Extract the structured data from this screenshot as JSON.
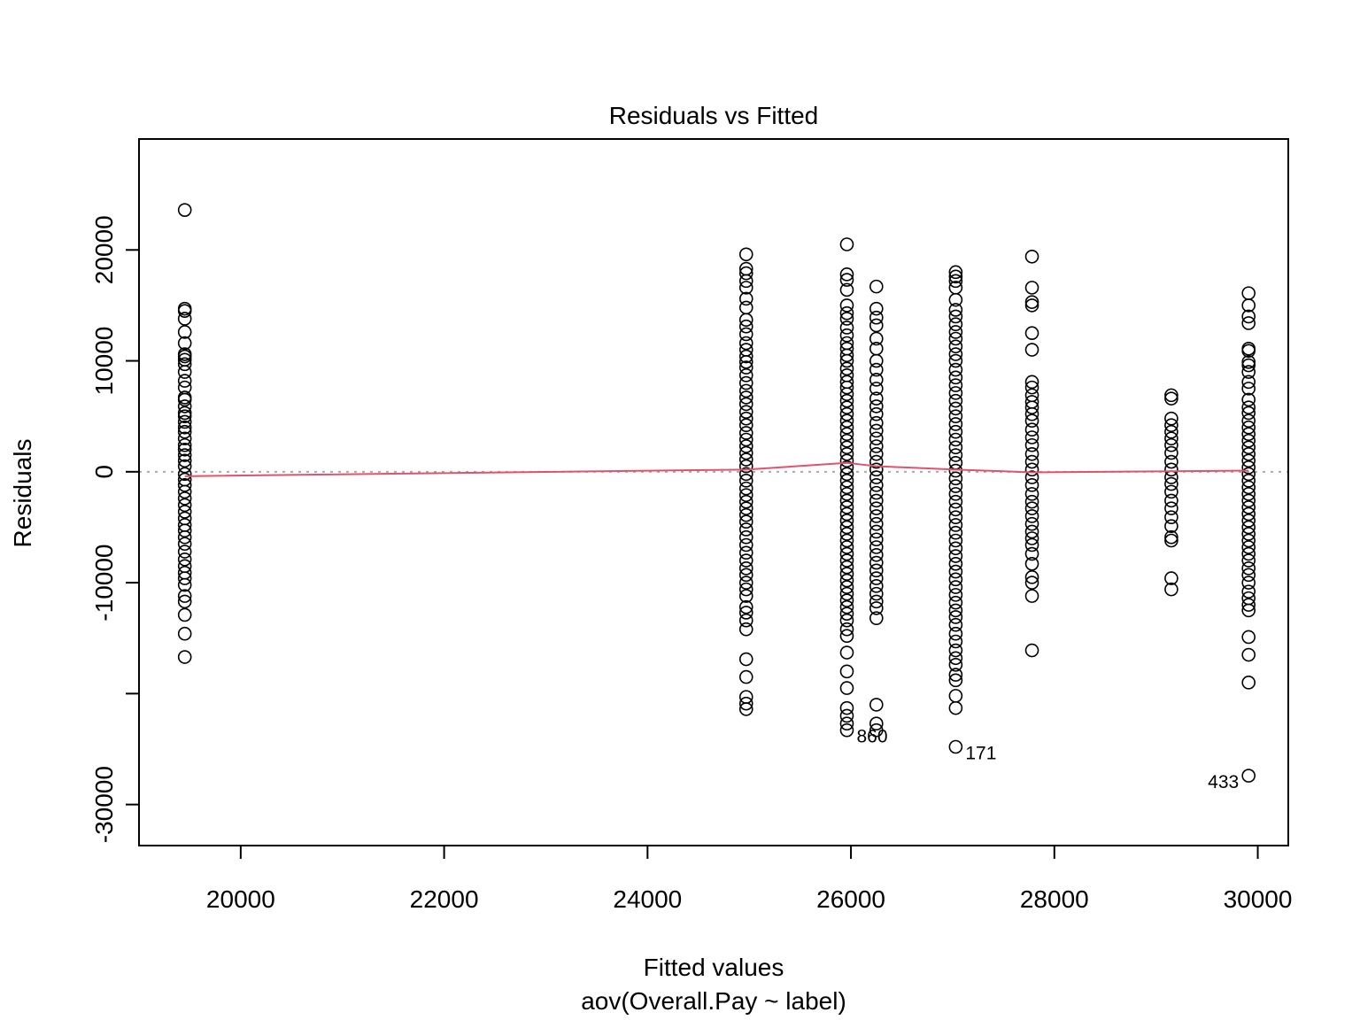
{
  "chart_data": {
    "type": "scatter",
    "title": "Residuals vs Fitted",
    "xlabel": "Fitted values",
    "subtitle": "aov(Overall.Pay ~ label)",
    "ylabel": "Residuals",
    "xlim": [
      19000,
      30300
    ],
    "ylim": [
      -33700,
      30000
    ],
    "x_ticks": [
      20000,
      22000,
      24000,
      26000,
      28000,
      30000
    ],
    "x_tick_labels": [
      "20000",
      "22000",
      "24000",
      "26000",
      "28000",
      "30000"
    ],
    "y_ticks": [
      -30000,
      -20000,
      -10000,
      0,
      10000,
      20000
    ],
    "y_tick_labels": [
      "-30000",
      "",
      "-10000",
      "0",
      "10000",
      "20000"
    ],
    "reference_line": {
      "y": 0,
      "style": "dotted",
      "color": "#aaaaaa"
    },
    "smooth_line": {
      "color": "#df536b",
      "x": [
        19450,
        24970,
        25960,
        26250,
        27030,
        27780,
        29150,
        29910
      ],
      "y": [
        -400,
        200,
        800,
        500,
        200,
        -50,
        50,
        100
      ]
    },
    "groups": [
      {
        "x": 19450,
        "residuals": [
          23600,
          14700,
          14500,
          13800,
          12600,
          11600,
          10600,
          10400,
          10100,
          9700,
          9000,
          8200,
          7600,
          6700,
          6500,
          5900,
          5300,
          5000,
          4500,
          4000,
          3600,
          3000,
          2400,
          2000,
          1500,
          1000,
          500,
          -200,
          -700,
          -1200,
          -1800,
          -2400,
          -3000,
          -3600,
          -4200,
          -4800,
          -5300,
          -5900,
          -6500,
          -7200,
          -7900,
          -8500,
          -9100,
          -9600,
          -10200,
          -11200,
          -11700,
          -12900,
          -14600,
          -16700
        ]
      },
      {
        "x": 24970,
        "residuals": [
          19600,
          18300,
          17900,
          17200,
          16600,
          15600,
          14800,
          13700,
          13100,
          12400,
          11600,
          11000,
          10400,
          9900,
          9400,
          8700,
          8000,
          7300,
          6700,
          6100,
          5400,
          4800,
          4200,
          3500,
          2900,
          2300,
          1700,
          1100,
          500,
          -200,
          -800,
          -1500,
          -2100,
          -2700,
          -3300,
          -3900,
          -4500,
          -5200,
          -5900,
          -6600,
          -7300,
          -8000,
          -8700,
          -9300,
          -10000,
          -10600,
          -11200,
          -12200,
          -12700,
          -13400,
          -14200,
          -16900,
          -18500,
          -20300,
          -20900,
          -21400
        ]
      },
      {
        "x": 25960,
        "residuals": [
          20500,
          17800,
          17300,
          16400,
          15000,
          14300,
          13800,
          13000,
          12300,
          11600,
          11100,
          10500,
          10000,
          9300,
          8700,
          8100,
          7600,
          7000,
          6400,
          5800,
          5200,
          4600,
          4000,
          3400,
          2800,
          2200,
          1600,
          1000,
          400,
          -200,
          -800,
          -1400,
          -2000,
          -2600,
          -3200,
          -3800,
          -4400,
          -5000,
          -5600,
          -6200,
          -6800,
          -7400,
          -8000,
          -8600,
          -9200,
          -9800,
          -10400,
          -11000,
          -11600,
          -12200,
          -12800,
          -13400,
          -14200,
          -14800,
          -16300,
          -18000,
          -19500,
          -21300,
          -22000,
          -22700,
          -23300
        ]
      },
      {
        "x": 26250,
        "residuals": [
          16700,
          14700,
          13900,
          13200,
          12000,
          11100,
          10000,
          9200,
          8300,
          7500,
          6600,
          5900,
          5200,
          4400,
          3700,
          3000,
          2300,
          1600,
          900,
          200,
          -500,
          -1200,
          -1900,
          -2600,
          -3300,
          -4000,
          -4700,
          -5400,
          -6100,
          -6800,
          -7500,
          -8200,
          -8900,
          -9600,
          -10300,
          -11000,
          -11700,
          -12300,
          -13200,
          -21000,
          -22700,
          -23300
        ]
      },
      {
        "x": 27030,
        "residuals": [
          18000,
          17600,
          17200,
          16600,
          15500,
          14600,
          14000,
          13300,
          12600,
          12000,
          11300,
          10600,
          10000,
          9200,
          8500,
          7800,
          7100,
          6400,
          5700,
          5000,
          4300,
          3600,
          2900,
          2200,
          1500,
          800,
          100,
          -600,
          -1300,
          -2000,
          -2700,
          -3400,
          -4100,
          -4800,
          -5500,
          -6200,
          -6900,
          -7600,
          -8300,
          -9000,
          -9700,
          -10400,
          -11100,
          -11800,
          -12500,
          -13100,
          -13800,
          -14600,
          -15300,
          -16100,
          -16800,
          -17400,
          -18300,
          -18800,
          -20200,
          -21300,
          -24800
        ]
      },
      {
        "x": 27780,
        "residuals": [
          19400,
          16600,
          15300,
          15000,
          12500,
          11000,
          8100,
          7600,
          6900,
          6300,
          5800,
          5200,
          4600,
          3800,
          3100,
          2400,
          1600,
          900,
          200,
          -500,
          -1200,
          -2000,
          -2700,
          -3300,
          -4000,
          -4700,
          -5400,
          -6000,
          -6600,
          -7400,
          -8300,
          -9500,
          -10000,
          -11200,
          -16100
        ]
      },
      {
        "x": 29150,
        "residuals": [
          6900,
          6600,
          4800,
          4200,
          3600,
          3000,
          2400,
          1700,
          900,
          200,
          -500,
          -1100,
          -1800,
          -2600,
          -3300,
          -4100,
          -4900,
          -5900,
          -6200,
          -9600,
          -10600
        ]
      },
      {
        "x": 29910,
        "residuals": [
          16100,
          15000,
          14000,
          13400,
          11100,
          10900,
          9900,
          9600,
          9000,
          8100,
          7500,
          6500,
          5800,
          5300,
          4600,
          4000,
          3400,
          2800,
          2200,
          1600,
          1000,
          400,
          -200,
          -800,
          -1400,
          -2000,
          -2600,
          -3200,
          -3800,
          -4400,
          -5000,
          -5600,
          -6200,
          -6800,
          -7400,
          -8000,
          -8700,
          -9300,
          -10000,
          -10800,
          -11400,
          -12000,
          -12500,
          -14900,
          -16500,
          -19000,
          -27400
        ]
      }
    ],
    "labeled_points": [
      {
        "label": "860",
        "x": 25960,
        "y": -23300,
        "side": "right"
      },
      {
        "label": "171",
        "x": 27030,
        "y": -24800,
        "side": "right"
      },
      {
        "label": "433",
        "x": 29910,
        "y": -27400,
        "side": "left"
      }
    ],
    "grid": false,
    "legend": "none"
  }
}
